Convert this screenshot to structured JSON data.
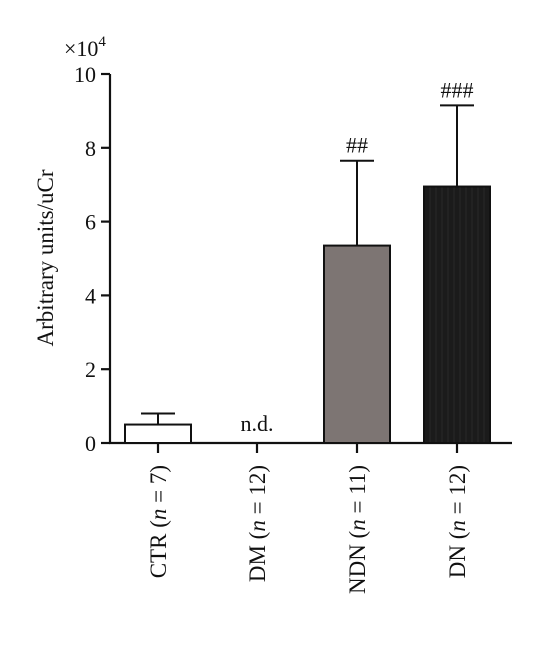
{
  "chart_data": {
    "type": "bar",
    "ylabel": "Arbitrary units/uCr",
    "y_multiplier": "×10",
    "y_multiplier_exp": "4",
    "ylim": [
      0,
      10
    ],
    "yticks": [
      "0",
      "2",
      "4",
      "6",
      "8",
      "10"
    ],
    "grid": false,
    "categories": [
      {
        "pre": "CTR (",
        "n": "n",
        "post": " = 7)"
      },
      {
        "pre": "DM (",
        "n": "n",
        "post": " = 12)"
      },
      {
        "pre": "NDN (",
        "n": "n",
        "post": " = 11)"
      },
      {
        "pre": "DN (",
        "n": "n",
        "post": " = 12)"
      }
    ],
    "values": [
      0.5,
      0,
      5.35,
      6.95
    ],
    "errors": [
      0.3,
      0,
      2.3,
      2.2
    ],
    "annotations": [
      "",
      "n.d.",
      "##",
      "###"
    ],
    "bar_fills": [
      "#ffffff",
      "#ffffff",
      "#7d7573",
      "#1b1b1b"
    ]
  }
}
